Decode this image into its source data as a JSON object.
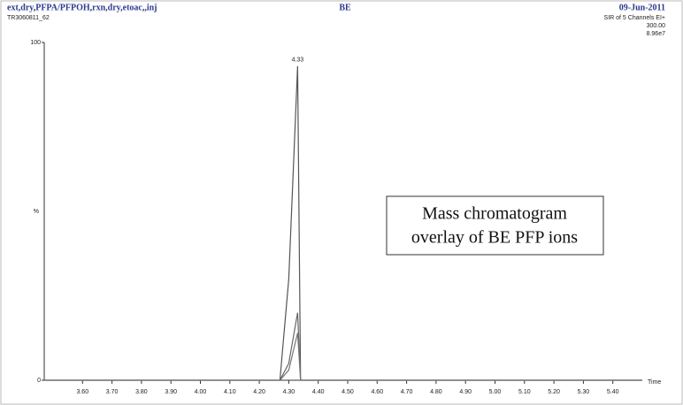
{
  "chart_data": {
    "type": "line",
    "title": "BE",
    "header_left": [
      "ext,dry,PFPA/PFPOH,rxn,dry,etoac,,inj",
      "TR3060811_62"
    ],
    "header_right": [
      "09-Jun-2011",
      "SIR of 5 Channels EI+",
      "300.00",
      "8.96e7"
    ],
    "ylabel": "%",
    "xlabel": "Time",
    "peak_label": "4.33",
    "annotation": [
      "Mass chromatogram",
      "overlay of BE PFP ions"
    ],
    "x": [
      3.47,
      4.27,
      4.3,
      4.33,
      4.34,
      4.36,
      5.5
    ],
    "series": [
      {
        "color": "#555555",
        "values": [
          0,
          0,
          30,
          93,
          0,
          0,
          0
        ]
      },
      {
        "color": "#666666",
        "values": [
          0,
          0,
          5,
          20,
          0,
          0,
          0
        ]
      },
      {
        "color": "#777777",
        "values": [
          0,
          0,
          3,
          14,
          0,
          0,
          0
        ]
      }
    ],
    "xlim": [
      3.47,
      5.5
    ],
    "xticks": [
      {
        "value": 3.6,
        "label": "3.60"
      },
      {
        "value": 3.7,
        "label": "3.70"
      },
      {
        "value": 3.8,
        "label": "3.80"
      },
      {
        "value": 3.9,
        "label": "3.90"
      },
      {
        "value": 4.0,
        "label": "4.00"
      },
      {
        "value": 4.1,
        "label": "4.10"
      },
      {
        "value": 4.2,
        "label": "4.20"
      },
      {
        "value": 4.3,
        "label": "4.30"
      },
      {
        "value": 4.4,
        "label": "4.40"
      },
      {
        "value": 4.5,
        "label": "4.50"
      },
      {
        "value": 4.6,
        "label": "4.60"
      },
      {
        "value": 4.7,
        "label": "4.70"
      },
      {
        "value": 4.8,
        "label": "4.80"
      },
      {
        "value": 4.9,
        "label": "4.90"
      },
      {
        "value": 5.0,
        "label": "5.00"
      },
      {
        "value": 5.1,
        "label": "5.10"
      },
      {
        "value": 5.2,
        "label": "5.20"
      },
      {
        "value": 5.3,
        "label": "5.30"
      },
      {
        "value": 5.4,
        "label": "5.40"
      }
    ],
    "ylim": [
      0,
      100
    ],
    "yticks": [
      0,
      100
    ]
  }
}
